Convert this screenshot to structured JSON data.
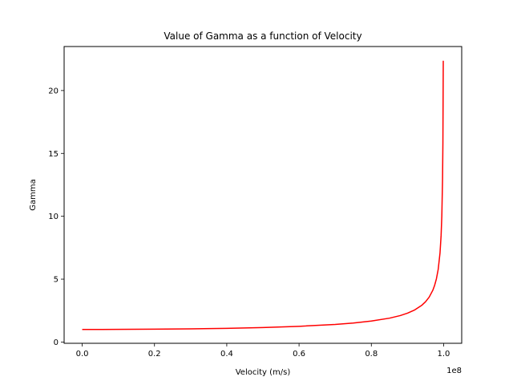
{
  "chart_data": {
    "type": "line",
    "title": "Value of Gamma as a function of Velocity",
    "xlabel": "Velocity (m/s)",
    "ylabel": "Gamma",
    "x_offset_label": "1e8",
    "xlim": [
      -0.05,
      1.05
    ],
    "ylim": [
      -0.1,
      23.5
    ],
    "x_ticks": [
      0.0,
      0.2,
      0.4,
      0.6,
      0.8,
      1.0
    ],
    "x_tick_labels": [
      "0.0",
      "0.2",
      "0.4",
      "0.6",
      "0.8",
      "1.0"
    ],
    "y_ticks": [
      0,
      5,
      10,
      15,
      20
    ],
    "y_tick_labels": [
      "0",
      "5",
      "10",
      "15",
      "20"
    ],
    "grid": false,
    "series": [
      {
        "color": "#ff0000",
        "x": [
          0.0,
          0.1,
          0.2,
          0.3,
          0.4,
          0.5,
          0.6,
          0.7,
          0.75,
          0.8,
          0.85,
          0.88,
          0.9,
          0.92,
          0.94,
          0.95,
          0.96,
          0.97,
          0.975,
          0.98,
          0.985,
          0.99,
          0.993,
          0.995,
          0.997,
          0.998,
          0.999
        ],
        "y": [
          1.0,
          1.005,
          1.021,
          1.048,
          1.091,
          1.155,
          1.25,
          1.4,
          1.512,
          1.667,
          1.898,
          2.105,
          2.294,
          2.552,
          2.931,
          3.203,
          3.571,
          4.113,
          4.5,
          5.025,
          5.783,
          7.089,
          8.466,
          10.013,
          12.93,
          15.82,
          22.37
        ]
      }
    ]
  }
}
